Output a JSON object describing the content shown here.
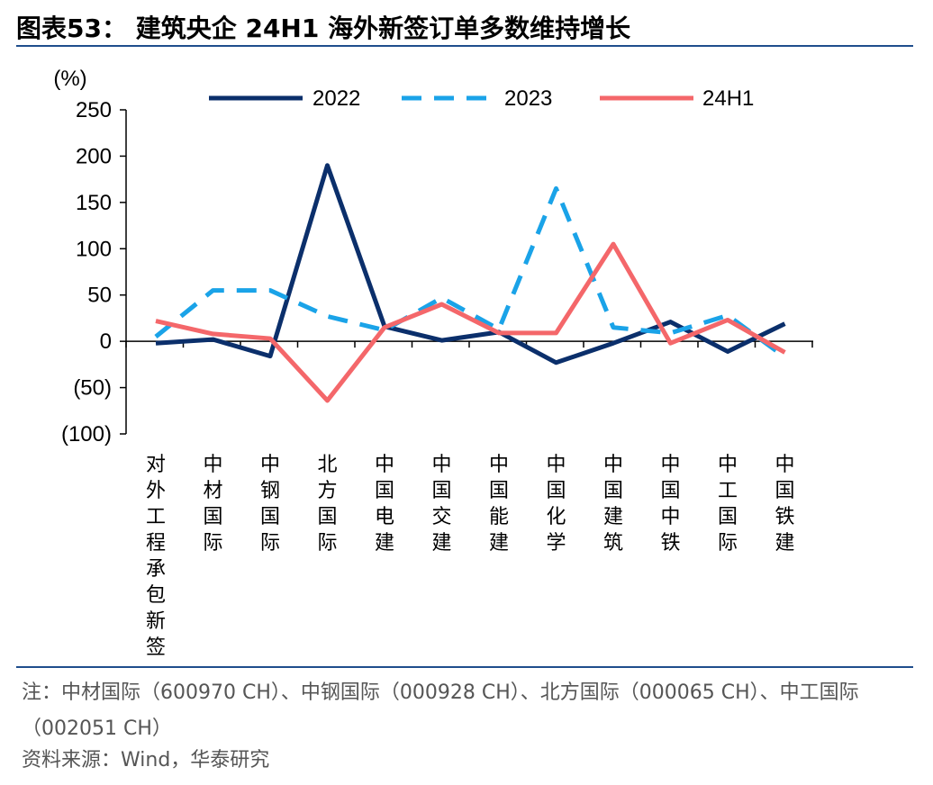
{
  "header": {
    "title": "图表53： 建筑央企 24H1 海外新签订单多数维持增长"
  },
  "footer": {
    "note": "注：中材国际（600970 CH）、中钢国际（000928 CH）、北方国际（000065 CH）、中工国际（002051 CH）",
    "source": "资料来源：Wind，华泰研究"
  },
  "chart_data": {
    "type": "line",
    "ylabel": "(%)",
    "ylim": [
      -100,
      250
    ],
    "yticks": [
      -100,
      -50,
      0,
      50,
      100,
      150,
      200,
      250
    ],
    "ytick_labels": [
      "(100)",
      "(50)",
      "0",
      "50",
      "100",
      "150",
      "200",
      "250"
    ],
    "legend_position": "top",
    "grid": false,
    "categories": [
      "对外工程承包新签",
      "中材国际",
      "中钢国际",
      "北方国际",
      "中国电建",
      "中国交建",
      "中国能建",
      "中国化学",
      "中国建筑",
      "中国中铁",
      "中工国际",
      "中国铁建"
    ],
    "series": [
      {
        "name": "2022",
        "color": "#0b2f6b",
        "dash": "solid",
        "values": [
          -2,
          2,
          -16,
          190,
          16,
          1,
          10,
          -23,
          -2,
          21,
          -11,
          19
        ]
      },
      {
        "name": "2023",
        "color": "#1aa3e8",
        "dash": "dashed",
        "values": [
          5,
          55,
          55,
          27,
          12,
          47,
          13,
          165,
          15,
          9,
          28,
          -17
        ]
      },
      {
        "name": "24H1",
        "color": "#f4676a",
        "dash": "solid",
        "values": [
          22,
          8,
          3,
          -64,
          15,
          40,
          9,
          9,
          105,
          -2,
          23,
          -12
        ]
      }
    ]
  }
}
